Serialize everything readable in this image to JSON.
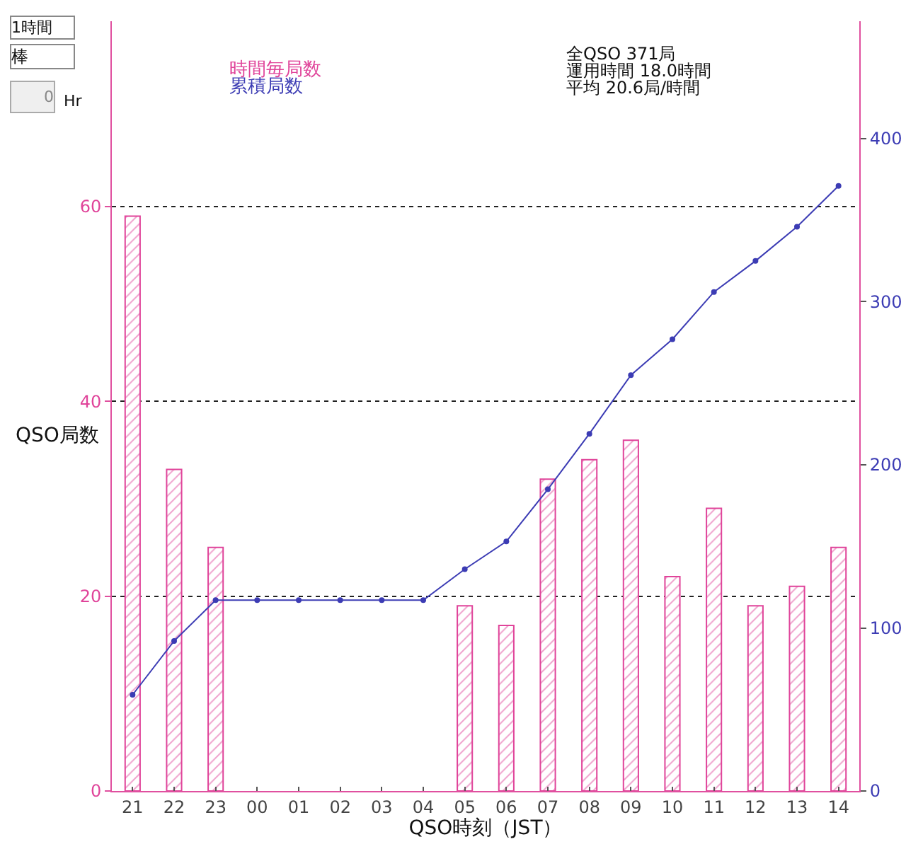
{
  "chart_data": {
    "type": "bar",
    "categories": [
      "21",
      "22",
      "23",
      "00",
      "01",
      "02",
      "03",
      "04",
      "05",
      "06",
      "07",
      "08",
      "09",
      "10",
      "11",
      "12",
      "13",
      "14"
    ],
    "series": [
      {
        "name": "時間毎局数",
        "color": "#e0449a",
        "values": [
          59,
          33,
          25,
          0,
          0,
          0,
          0,
          0,
          19,
          17,
          32,
          34,
          36,
          22,
          29,
          19,
          21,
          25
        ]
      },
      {
        "name": "累積局数",
        "type": "line",
        "axis": "y2",
        "color": "#3c3cb4",
        "values": [
          59,
          92,
          117,
          117,
          117,
          117,
          117,
          117,
          136,
          153,
          185,
          219,
          255,
          277,
          306,
          325,
          346,
          371
        ]
      }
    ],
    "xlabel": "QSO時刻（JST）",
    "ylabel": "QSO局数",
    "ylim": [
      0,
      79
    ],
    "yticks": [
      0,
      20,
      40,
      60
    ],
    "y2lim": [
      0,
      472
    ],
    "y2ticks": [
      0,
      100,
      200,
      300,
      400
    ],
    "grid": "y",
    "legend": "top left",
    "marker": "circle",
    "annotations": [
      "全QSO 371局",
      "運用時間 18.0時間",
      "平均 20.6局/時間",
      "1時間",
      "棒",
      "0",
      "Hr"
    ]
  }
}
